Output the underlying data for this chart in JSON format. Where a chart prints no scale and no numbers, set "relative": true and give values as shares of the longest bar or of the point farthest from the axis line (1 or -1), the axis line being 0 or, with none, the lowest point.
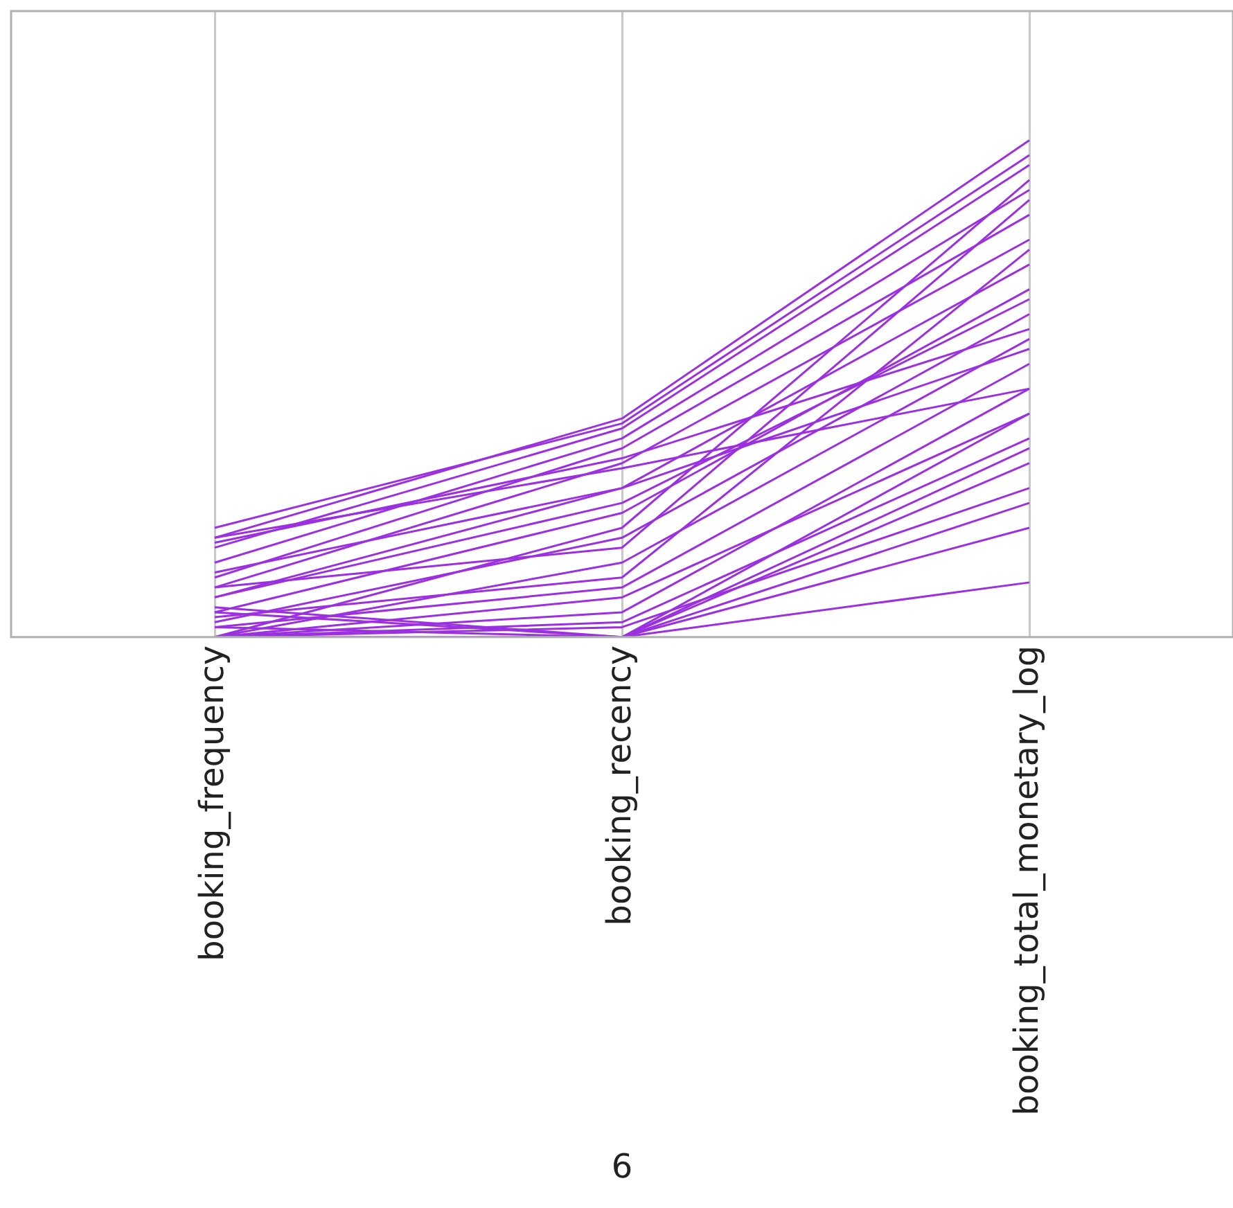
{
  "chart_data": {
    "type": "line",
    "relative": true,
    "xlabel": "6",
    "categories": [
      "booking_frequency",
      "booking_recency",
      "booking_total_monetary_log"
    ],
    "grid": "x",
    "legend": false,
    "marker": "none",
    "series": [
      {
        "color": "#9b30e0",
        "values": [
          0.22,
          0.43,
          0.97
        ]
      },
      {
        "color": "#9b30e0",
        "values": [
          0.2,
          0.44,
          1.0
        ]
      },
      {
        "color": "#9b30e0",
        "values": [
          0.18,
          0.42,
          0.95
        ]
      },
      {
        "color": "#9b30e0",
        "values": [
          0.15,
          0.4,
          0.9
        ]
      },
      {
        "color": "#9b30e0",
        "values": [
          0.12,
          0.38,
          0.85
        ]
      },
      {
        "color": "#9b30e0",
        "values": [
          0.1,
          0.35,
          0.8
        ]
      },
      {
        "color": "#9b30e0",
        "values": [
          0.08,
          0.3,
          0.75
        ]
      },
      {
        "color": "#9b30e0",
        "values": [
          0.05,
          0.25,
          0.7
        ]
      },
      {
        "color": "#9b30e0",
        "values": [
          0.03,
          0.2,
          0.65
        ]
      },
      {
        "color": "#9b30e0",
        "values": [
          0,
          0.15,
          0.6
        ]
      },
      {
        "color": "#9b30e0",
        "values": [
          0.02,
          0.1,
          0.55
        ]
      },
      {
        "color": "#9b30e0",
        "values": [
          0,
          0.05,
          0.5
        ]
      },
      {
        "color": "#9b30e0",
        "values": [
          0.06,
          0,
          0.45
        ]
      },
      {
        "color": "#9b30e0",
        "values": [
          0,
          0.22,
          0.92
        ]
      },
      {
        "color": "#9b30e0",
        "values": [
          0.1,
          0.18,
          0.88
        ]
      },
      {
        "color": "#9b30e0",
        "values": [
          0.04,
          0.12,
          0.78
        ]
      },
      {
        "color": "#9b30e0",
        "values": [
          0.13,
          0.3,
          0.58
        ]
      },
      {
        "color": "#9b30e0",
        "values": [
          0,
          0.03,
          0.4
        ]
      },
      {
        "color": "#9b30e0",
        "values": [
          0,
          0,
          0.38
        ]
      },
      {
        "color": "#9b30e0",
        "values": [
          0.02,
          0,
          0.35
        ]
      },
      {
        "color": "#9b30e0",
        "values": [
          0,
          0.02,
          0.3
        ]
      },
      {
        "color": "#9b30e0",
        "values": [
          0.05,
          0,
          0.27
        ]
      },
      {
        "color": "#9b30e0",
        "values": [
          0,
          0,
          0.22
        ]
      },
      {
        "color": "#9b30e0",
        "values": [
          0,
          0,
          0.11
        ]
      },
      {
        "color": "#9b30e0",
        "values": [
          0,
          0.08,
          0.45
        ]
      },
      {
        "color": "#9b30e0",
        "values": [
          0.19,
          0.36,
          0.62
        ]
      },
      {
        "color": "#9b30e0",
        "values": [
          0.08,
          0.27,
          0.68
        ]
      },
      {
        "color": "#9b30e0",
        "values": [
          0.2,
          0.34,
          0.5
        ]
      }
    ]
  }
}
